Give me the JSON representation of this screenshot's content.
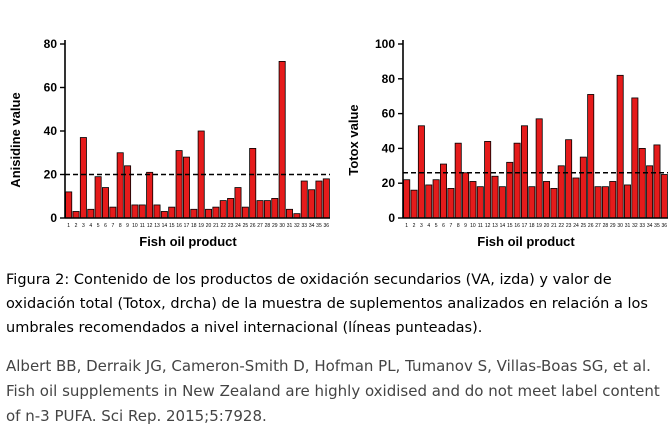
{
  "chart_data": [
    {
      "type": "bar",
      "title": "",
      "xlabel": "Fish oil product",
      "ylabel": "Anisidine value",
      "ylim": [
        0,
        80
      ],
      "yticks": [
        0,
        20,
        40,
        60,
        80
      ],
      "threshold": 20,
      "categories": [
        "1",
        "2",
        "3",
        "4",
        "5",
        "6",
        "7",
        "8",
        "9",
        "10",
        "11",
        "12",
        "13",
        "14",
        "15",
        "16",
        "17",
        "18",
        "19",
        "20",
        "21",
        "22",
        "23",
        "24",
        "25",
        "26",
        "27",
        "28",
        "29",
        "30",
        "31",
        "32",
        "33",
        "34",
        "35",
        "36"
      ],
      "values": [
        12,
        3,
        37,
        4,
        19,
        14,
        5,
        30,
        24,
        6,
        6,
        21,
        6,
        3,
        5,
        31,
        28,
        4,
        40,
        4,
        5,
        8,
        9,
        14,
        5,
        32,
        8,
        8,
        9,
        72,
        4,
        2,
        17,
        13,
        17,
        18
      ],
      "bar_color": "#e51b1b",
      "grid": false
    },
    {
      "type": "bar",
      "title": "",
      "xlabel": "Fish oil product",
      "ylabel": "Totox value",
      "ylim": [
        0,
        100
      ],
      "yticks": [
        0,
        20,
        40,
        60,
        80,
        100
      ],
      "threshold": 26,
      "categories": [
        "1",
        "2",
        "3",
        "4",
        "5",
        "6",
        "7",
        "8",
        "9",
        "10",
        "11",
        "12",
        "13",
        "14",
        "15",
        "16",
        "17",
        "18",
        "19",
        "20",
        "21",
        "22",
        "23",
        "24",
        "25",
        "26",
        "27",
        "28",
        "29",
        "30",
        "31",
        "32",
        "33",
        "34",
        "35",
        "36"
      ],
      "values": [
        22,
        16,
        53,
        19,
        22,
        31,
        17,
        43,
        26,
        21,
        18,
        44,
        24,
        18,
        32,
        43,
        53,
        18,
        57,
        21,
        17,
        30,
        45,
        23,
        35,
        71,
        18,
        18,
        21,
        82,
        19,
        69,
        40,
        30,
        42,
        25
      ],
      "bar_color": "#e51b1b",
      "grid": false
    }
  ],
  "caption": "Figura 2: Contenido de los productos de oxidación secundarios (VA, izda) y valor de oxidación total (Totox, drcha) de la muestra de suplementos analizados en relación a los umbrales recomendados a nivel internacional (líneas punteadas).",
  "citation": "Albert BB, Derraik JG, Cameron-Smith D, Hofman PL, Tumanov S, Villas-Boas SG, et al. Fish oil supplements in New Zealand are highly oxidised and do not meet label content of n-3 PUFA. Sci Rep. 2015;5:7928."
}
